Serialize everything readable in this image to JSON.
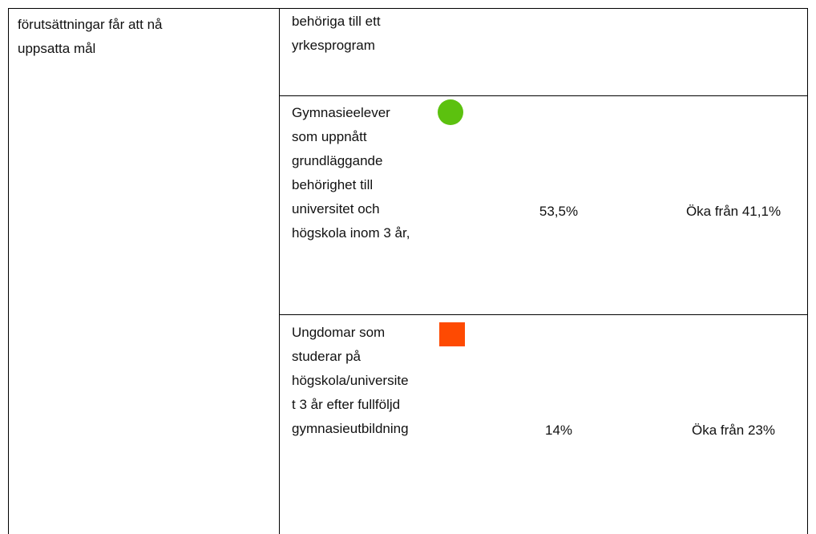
{
  "left_cell": "förutsättningar får att nå uppsatta mål",
  "rows": [
    {
      "indicator": "behöriga till ett yrkesprogram"
    },
    {
      "indicator": "Gymnasieelever som uppnått grundläggande behörighet till universitet och högskola inom 3 år,",
      "value": "53,5%",
      "target": "Öka från 41,1%"
    },
    {
      "indicator": "Ungdomar som studerar på högskola/universitet 3 år efter fullföljd gymnasieutbildning",
      "value": "14%",
      "target": "Öka från 23%"
    }
  ]
}
